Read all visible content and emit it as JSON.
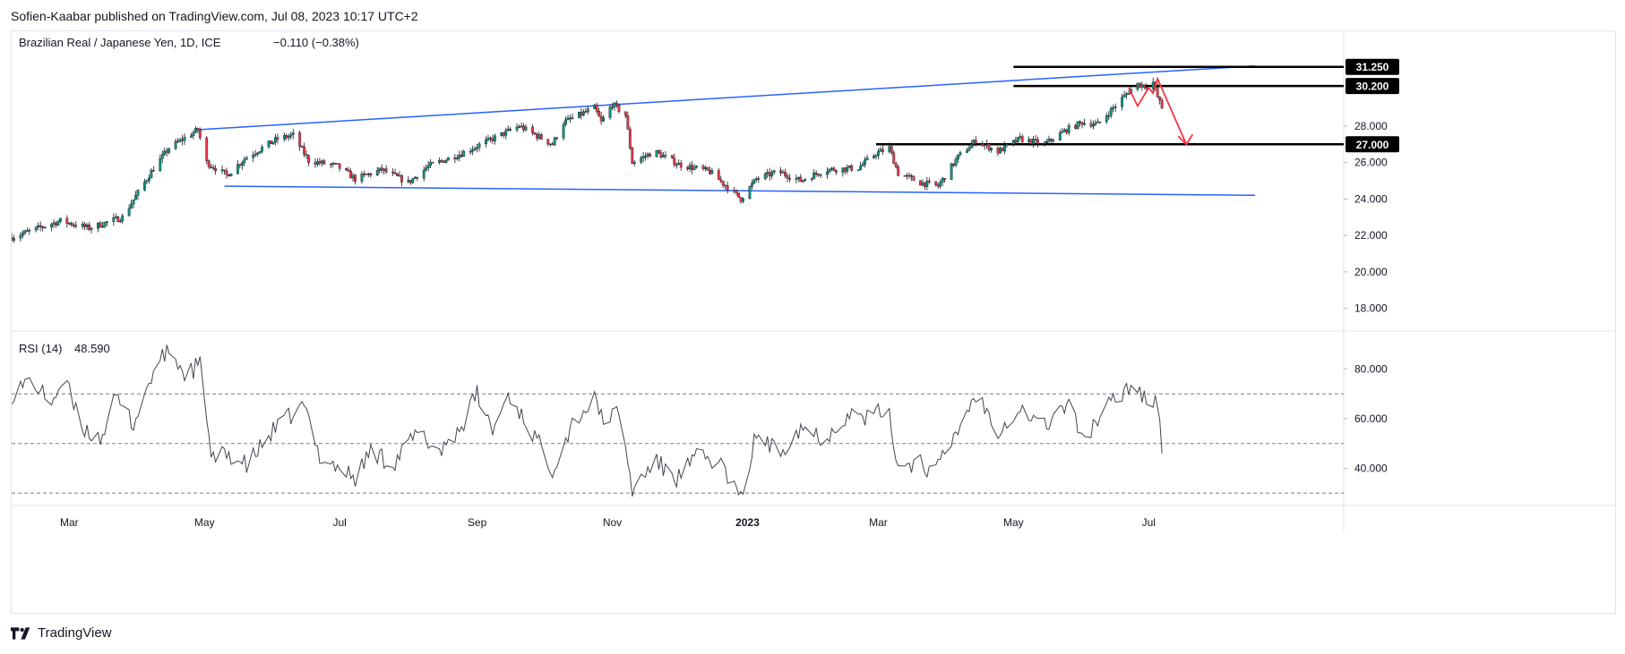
{
  "header": {
    "published": "Sofien-Kaabar published on TradingView.com, Jul 08, 2023 10:17 UTC+2"
  },
  "footer": {
    "brand": "TradingView",
    "logo_icon": "tradingview-logo-icon"
  },
  "chart_data": [
    {
      "type": "candlestick",
      "title": "Brazilian Real / Japanese Yen, 1D, ICE",
      "change": "−0.110 (−0.38%)",
      "ylim": [
        16.8,
        33.2
      ],
      "y_ticks": [
        "18.000",
        "20.000",
        "22.000",
        "24.000",
        "26.000",
        "28.000"
      ],
      "price_labels": [
        "31.250",
        "30.200",
        "27.000"
      ],
      "x_range": [
        "2022-02-03",
        "2023-09-27"
      ],
      "x_ticks": [
        {
          "date": "2022-03-01",
          "label": "Mar",
          "bold": false
        },
        {
          "date": "2022-05-01",
          "label": "May",
          "bold": false
        },
        {
          "date": "2022-07-01",
          "label": "Jul",
          "bold": false
        },
        {
          "date": "2022-09-01",
          "label": "Sep",
          "bold": false
        },
        {
          "date": "2022-11-01",
          "label": "Nov",
          "bold": false
        },
        {
          "date": "2023-01-01",
          "label": "2023",
          "bold": true
        },
        {
          "date": "2023-03-01",
          "label": "Mar",
          "bold": false
        },
        {
          "date": "2023-05-01",
          "label": "May",
          "bold": false
        },
        {
          "date": "2023-07-01",
          "label": "Jul",
          "bold": false
        }
      ],
      "price_anchors": [
        [
          "2022-02-03",
          21.9
        ],
        [
          "2022-02-25",
          22.8
        ],
        [
          "2022-03-10",
          22.4
        ],
        [
          "2022-03-25",
          23.0
        ],
        [
          "2022-04-07",
          25.5
        ],
        [
          "2022-04-15",
          26.8
        ],
        [
          "2022-04-28",
          27.8
        ],
        [
          "2022-05-02",
          26.0
        ],
        [
          "2022-05-11",
          25.3
        ],
        [
          "2022-05-20",
          26.3
        ],
        [
          "2022-06-03",
          27.3
        ],
        [
          "2022-06-10",
          27.5
        ],
        [
          "2022-06-17",
          26.1
        ],
        [
          "2022-06-30",
          25.8
        ],
        [
          "2022-07-08",
          25.1
        ],
        [
          "2022-07-20",
          25.6
        ],
        [
          "2022-08-01",
          24.9
        ],
        [
          "2022-08-10",
          25.8
        ],
        [
          "2022-08-25",
          26.5
        ],
        [
          "2022-09-08",
          27.3
        ],
        [
          "2022-09-20",
          28.0
        ],
        [
          "2022-10-05",
          27.0
        ],
        [
          "2022-10-10",
          28.2
        ],
        [
          "2022-10-24",
          29.0
        ],
        [
          "2022-10-27",
          28.2
        ],
        [
          "2022-11-01",
          29.2
        ],
        [
          "2022-11-07",
          28.6
        ],
        [
          "2022-11-10",
          26.0
        ],
        [
          "2022-11-20",
          26.6
        ],
        [
          "2022-12-01",
          25.9
        ],
        [
          "2022-12-15",
          25.5
        ],
        [
          "2022-12-29",
          24.0
        ],
        [
          "2023-01-05",
          25.1
        ],
        [
          "2023-01-15",
          25.5
        ],
        [
          "2023-01-25",
          25.0
        ],
        [
          "2023-02-05",
          25.6
        ],
        [
          "2023-02-20",
          25.7
        ],
        [
          "2023-02-28",
          26.5
        ],
        [
          "2023-03-06",
          26.8
        ],
        [
          "2023-03-10",
          25.4
        ],
        [
          "2023-03-20",
          24.9
        ],
        [
          "2023-03-28",
          24.7
        ],
        [
          "2023-04-06",
          26.3
        ],
        [
          "2023-04-14",
          27.2
        ],
        [
          "2023-04-24",
          26.6
        ],
        [
          "2023-05-04",
          27.3
        ],
        [
          "2023-05-15",
          27.0
        ],
        [
          "2023-05-25",
          27.8
        ],
        [
          "2023-06-01",
          28.2
        ],
        [
          "2023-06-08",
          28.1
        ],
        [
          "2023-06-15",
          29.0
        ],
        [
          "2023-06-22",
          29.9
        ],
        [
          "2023-06-26",
          30.3
        ],
        [
          "2023-06-30",
          30.2
        ],
        [
          "2023-07-03",
          30.4
        ],
        [
          "2023-07-05",
          29.6
        ],
        [
          "2023-07-07",
          29.0
        ]
      ],
      "trendlines": [
        {
          "points": [
            [
              "2022-04-28",
              27.8
            ],
            [
              "2023-08-18",
              31.3
            ]
          ],
          "color": "#2962ff"
        },
        {
          "points": [
            [
              "2022-05-10",
              24.7
            ],
            [
              "2023-08-18",
              24.2
            ]
          ],
          "color": "#2962ff"
        }
      ],
      "horizontal_levels": [
        {
          "value": 31.25,
          "start": "2023-05-01",
          "color": "#000000"
        },
        {
          "value": 30.2,
          "start": "2023-05-01",
          "color": "#000000"
        },
        {
          "value": 27.0,
          "start": "2023-02-28",
          "color": "#000000"
        }
      ],
      "annotation_path": {
        "color": "#f23645",
        "points": [
          [
            "2023-06-22",
            30.1
          ],
          [
            "2023-06-26",
            29.1
          ],
          [
            "2023-07-01",
            30.1
          ],
          [
            "2023-07-03",
            29.8
          ],
          [
            "2023-07-05",
            30.6
          ],
          [
            "2023-07-18",
            27.0
          ]
        ]
      },
      "colors": {
        "up": "#089981",
        "down": "#f23645",
        "wick": "#131722"
      }
    },
    {
      "type": "line",
      "title": "RSI (14)",
      "value": "48.590",
      "ylim": [
        25,
        95
      ],
      "y_ticks": [
        "40.000",
        "60.000",
        "80.000"
      ],
      "levels": [
        30,
        50,
        70
      ],
      "rsi_anchors": [
        [
          "2022-02-03",
          70
        ],
        [
          "2022-02-12",
          76
        ],
        [
          "2022-02-20",
          66
        ],
        [
          "2022-02-27",
          76
        ],
        [
          "2022-03-06",
          57
        ],
        [
          "2022-03-15",
          52
        ],
        [
          "2022-03-22",
          68
        ],
        [
          "2022-03-30",
          58
        ],
        [
          "2022-04-08",
          79
        ],
        [
          "2022-04-15",
          88
        ],
        [
          "2022-04-22",
          78
        ],
        [
          "2022-04-30",
          82
        ],
        [
          "2022-05-04",
          43
        ],
        [
          "2022-05-12",
          46
        ],
        [
          "2022-05-20",
          41
        ],
        [
          "2022-06-01",
          55
        ],
        [
          "2022-06-10",
          62
        ],
        [
          "2022-06-15",
          65
        ],
        [
          "2022-06-22",
          45
        ],
        [
          "2022-07-01",
          40
        ],
        [
          "2022-07-08",
          36
        ],
        [
          "2022-07-15",
          47
        ],
        [
          "2022-07-25",
          42
        ],
        [
          "2022-08-05",
          54
        ],
        [
          "2022-08-15",
          47
        ],
        [
          "2022-08-25",
          57
        ],
        [
          "2022-09-01",
          70
        ],
        [
          "2022-09-08",
          55
        ],
        [
          "2022-09-15",
          70
        ],
        [
          "2022-09-25",
          56
        ],
        [
          "2022-10-05",
          40
        ],
        [
          "2022-10-15",
          60
        ],
        [
          "2022-10-24",
          67
        ],
        [
          "2022-10-30",
          58
        ],
        [
          "2022-11-04",
          64
        ],
        [
          "2022-11-10",
          31
        ],
        [
          "2022-11-20",
          43
        ],
        [
          "2022-11-30",
          36
        ],
        [
          "2022-12-10",
          45
        ],
        [
          "2022-12-20",
          42
        ],
        [
          "2022-12-29",
          27
        ],
        [
          "2023-01-05",
          54
        ],
        [
          "2023-01-15",
          46
        ],
        [
          "2023-01-25",
          57
        ],
        [
          "2023-02-05",
          52
        ],
        [
          "2023-02-15",
          62
        ],
        [
          "2023-02-25",
          60
        ],
        [
          "2023-03-05",
          65
        ],
        [
          "2023-03-10",
          41
        ],
        [
          "2023-03-20",
          43
        ],
        [
          "2023-03-26",
          37
        ],
        [
          "2023-04-05",
          54
        ],
        [
          "2023-04-14",
          70
        ],
        [
          "2023-04-24",
          56
        ],
        [
          "2023-05-04",
          64
        ],
        [
          "2023-05-15",
          57
        ],
        [
          "2023-05-25",
          66
        ],
        [
          "2023-06-02",
          52
        ],
        [
          "2023-06-10",
          62
        ],
        [
          "2023-06-18",
          70
        ],
        [
          "2023-06-25",
          75
        ],
        [
          "2023-07-01",
          65
        ],
        [
          "2023-07-04",
          70
        ],
        [
          "2023-07-06",
          58
        ],
        [
          "2023-07-07",
          49
        ]
      ],
      "colors": {
        "line": "#434651",
        "level": "#787b86"
      }
    }
  ]
}
